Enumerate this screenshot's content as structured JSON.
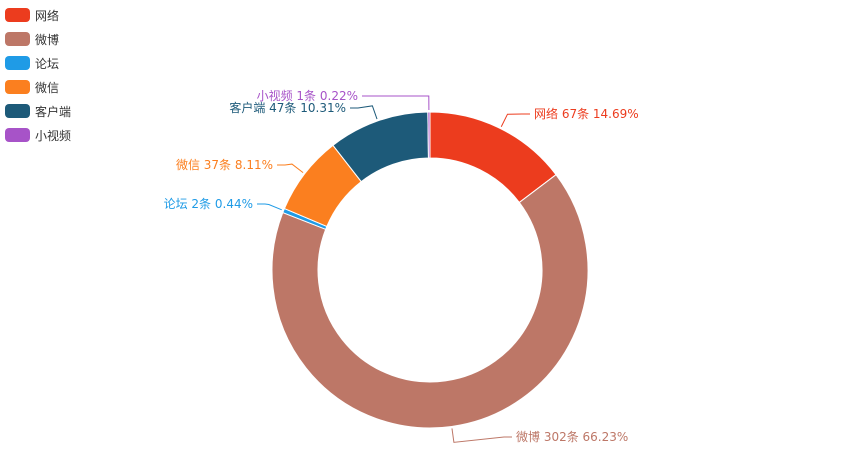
{
  "chart_data": {
    "type": "pie",
    "subtype": "donut",
    "unit": "条",
    "legend_position": "top-left",
    "series": [
      {
        "name": "网络",
        "value": 67,
        "percent": "14.69%",
        "color": "#ec3c1e",
        "label": "网络 67条  14.69%"
      },
      {
        "name": "微博",
        "value": 302,
        "percent": "66.23%",
        "color": "#bd7767",
        "label": "微博 302条  66.23%"
      },
      {
        "name": "论坛",
        "value": 2,
        "percent": "0.44%",
        "color": "#1f9be6",
        "label": "论坛 2条  0.44%"
      },
      {
        "name": "微信",
        "value": 37,
        "percent": "8.11%",
        "color": "#fb7f1f",
        "label": "微信 37条  8.11%"
      },
      {
        "name": "客户端",
        "value": 47,
        "percent": "10.31%",
        "color": "#1d5a79",
        "label": "客户端 47条  10.31%"
      },
      {
        "name": "小视频",
        "value": 1,
        "percent": "0.22%",
        "color": "#a753c8",
        "label": "小视频 1条  0.22%"
      }
    ]
  }
}
